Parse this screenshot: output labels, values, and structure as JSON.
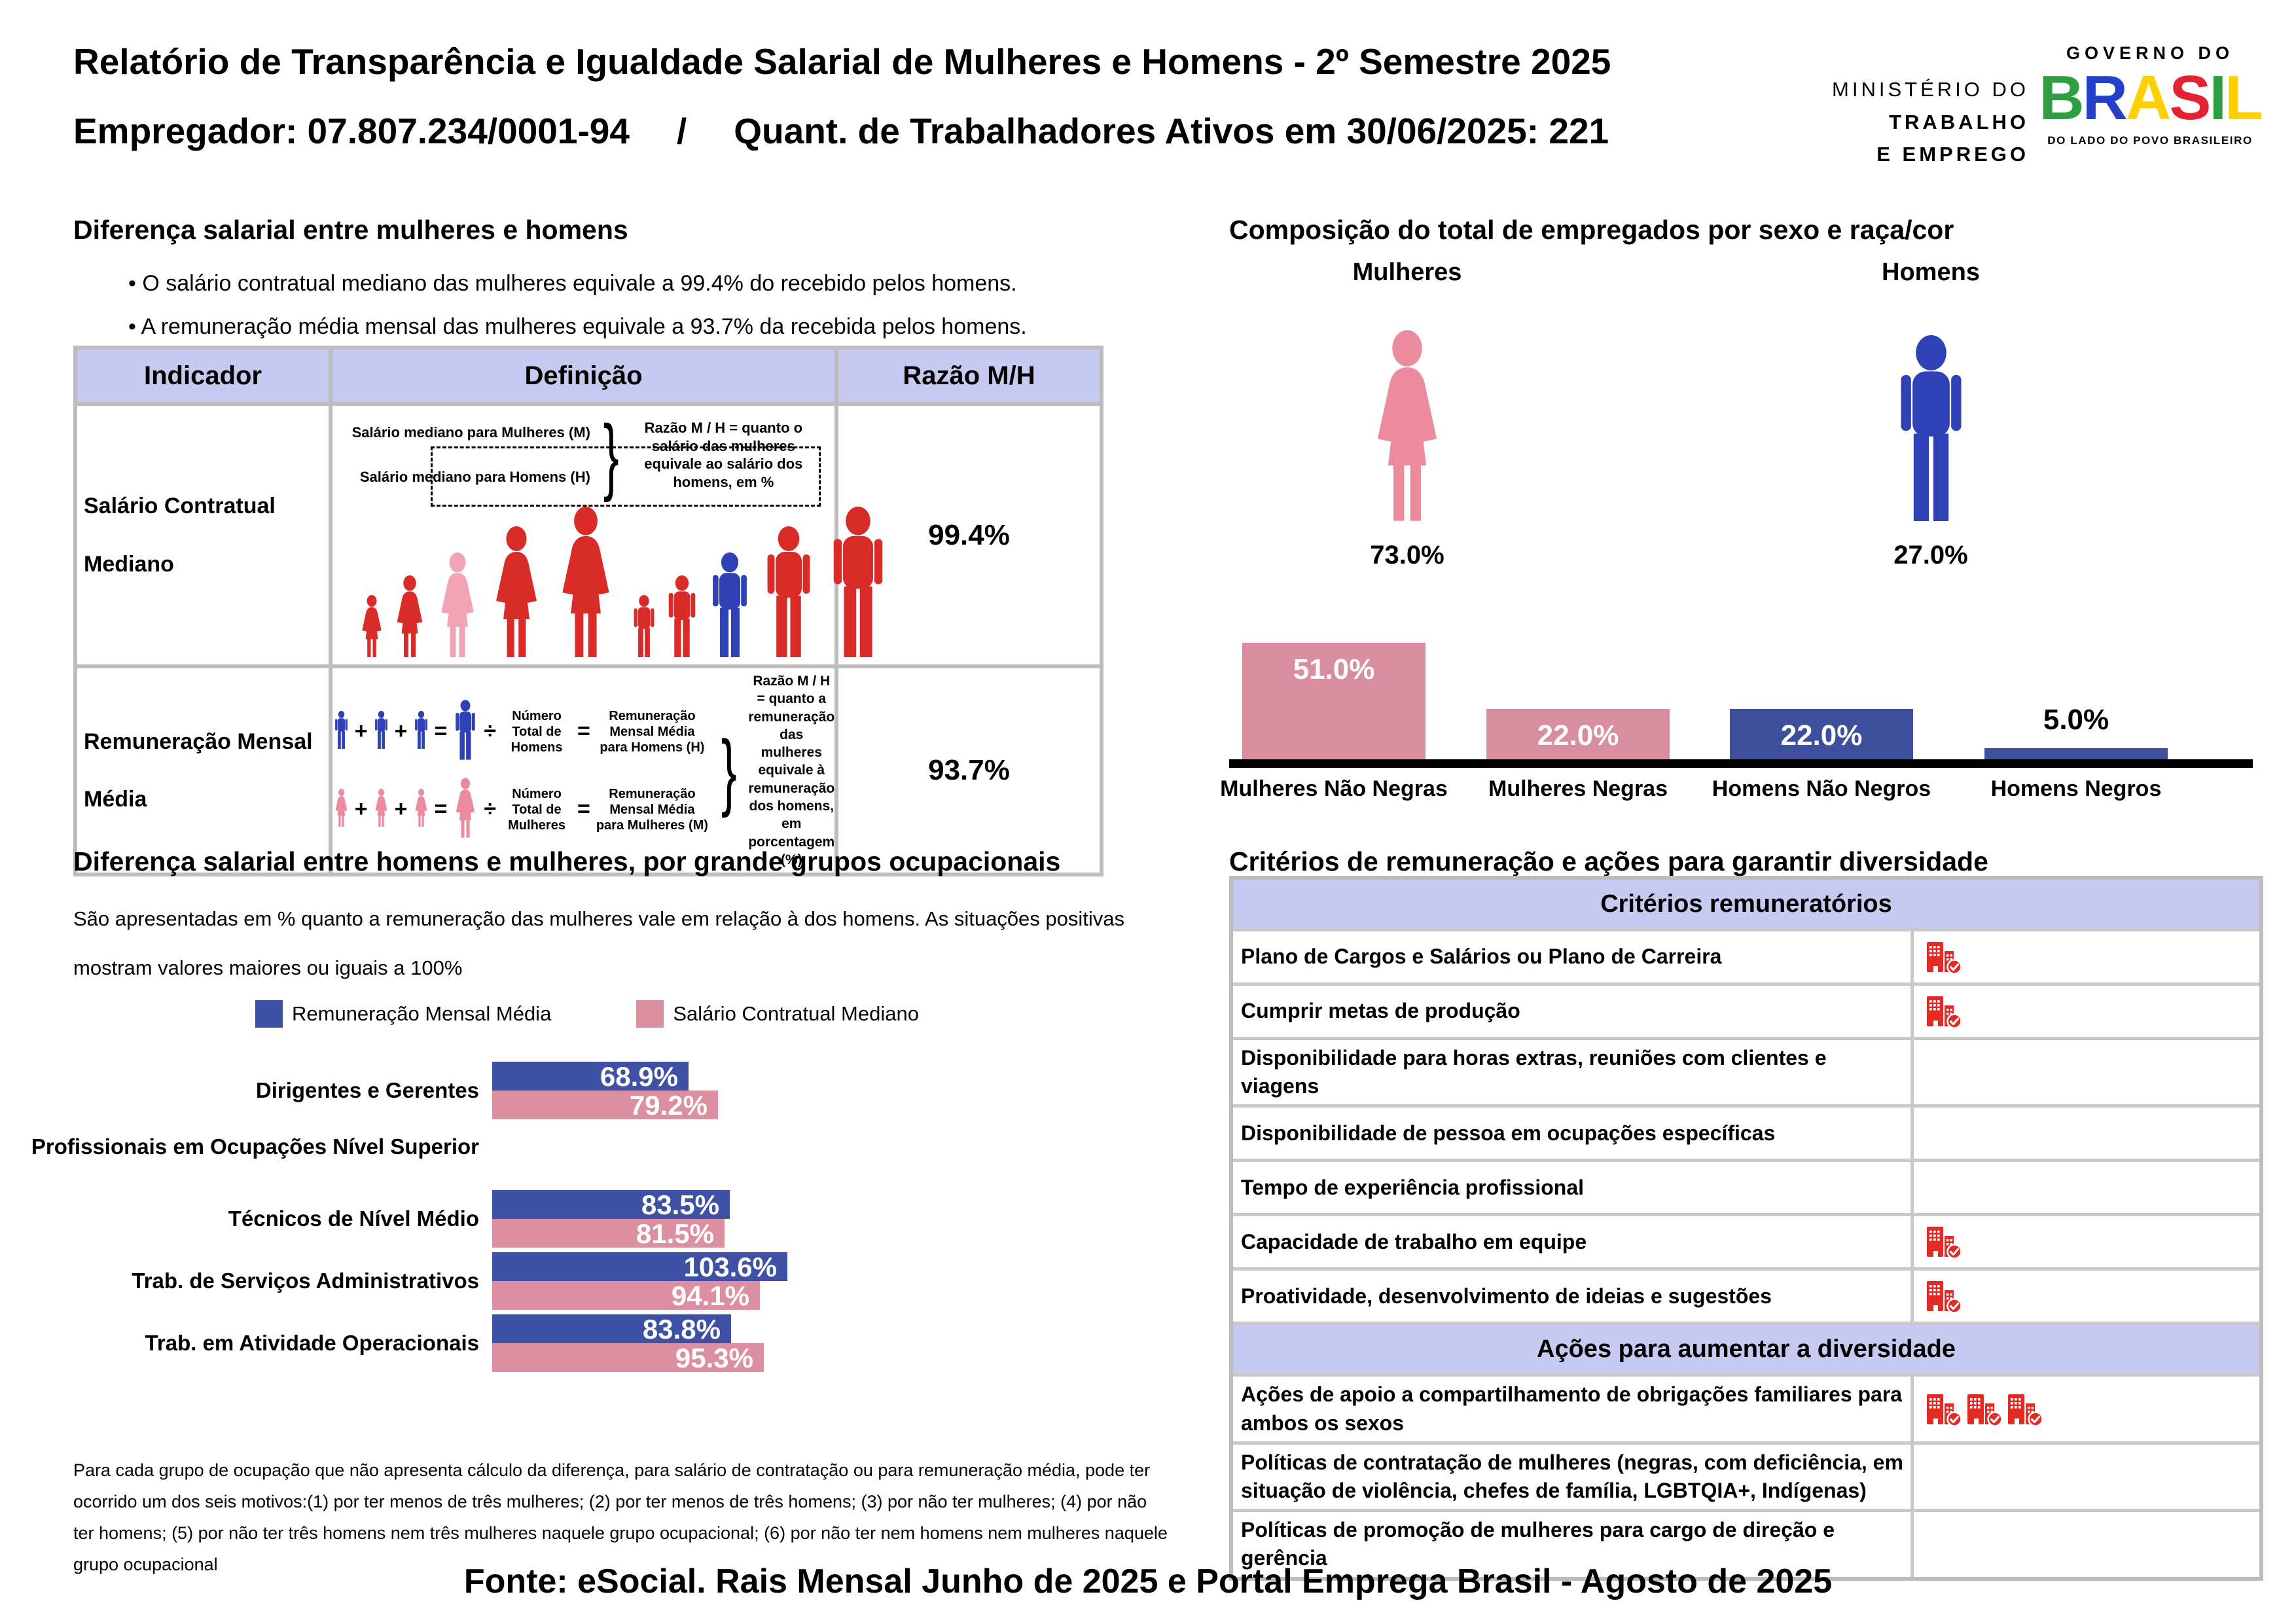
{
  "header": {
    "title": "Relatório de Transparência e Igualdade Salarial de Mulheres e Homens - 2º Semestre 2025",
    "employer": "Empregador: 07.807.234/0001-94",
    "separator": "/",
    "active_workers": "Quant. de Trabalhadores Ativos em 30/06/2025: 221",
    "ministry_lines": [
      "MINISTÉRIO DO",
      "TRABALHO",
      "E EMPREGO"
    ],
    "gov_logo": {
      "kicker": "GOVERNO DO",
      "brand_letters": [
        "B",
        "R",
        "A",
        "S",
        "I",
        "L"
      ],
      "brand_letter_colors": [
        "#2f9e41",
        "#2440c9",
        "#ffd000",
        "#e52330",
        "#2f9e41",
        "#ffd000"
      ],
      "tagline": "DO LADO DO POVO BRASILEIRO"
    }
  },
  "colors": {
    "female_pink": "#ec8b9d",
    "male_blue": "#2e41b5",
    "bar_pink": "#d98da0",
    "bar_navy": "#3e4f9e",
    "chart_blue": "#3f51a5",
    "chart_pink": "#dd8fa2",
    "header_lavender": "#c6c9f0",
    "icon_red": "#e32a25",
    "figure_red": "#d92b28",
    "figure_pink_highlight": "#f0a4b4"
  },
  "salary_gap": {
    "title": "Diferença salarial entre mulheres e homens",
    "bullets": [
      "O salário contratual mediano das mulheres equivale a 99.4% do recebido pelos homens.",
      "A remuneração média mensal das mulheres equivale a 93.7% da recebida pelos homens."
    ],
    "table": {
      "headers": [
        "Indicador",
        "Definição",
        "Razão M/H"
      ],
      "rows": [
        {
          "indicator": "Salário Contratual Mediano",
          "ratio": "99.4%",
          "definition": {
            "label_women": "Salário mediano para Mulheres (M)",
            "label_men": "Salário mediano para Homens (H)",
            "explanation": "Razão M / H = quanto o salário das mulheres equivale ao salário dos homens, em %"
          }
        },
        {
          "indicator": "Remuneração Mensal Média",
          "ratio": "93.7%",
          "definition": {
            "signs": {
              "plus": "+",
              "equals": "=",
              "divide": "÷"
            },
            "men_count_label": "Número Total de Homens",
            "men_result_label": "Remuneração Mensal Média para Homens (H)",
            "women_count_label": "Número Total de Mulheres",
            "women_result_label": "Remuneração Mensal Média para Mulheres (M)",
            "explanation": "Razão M / H = quanto a remuneração das mulheres equivale à remuneração dos homens, em porcentagem (%)"
          }
        }
      ]
    }
  },
  "occupational": {
    "footnote_lines": [
      "Para cada grupo de ocupação que não apresenta cálculo da diferença, para salário de contratação ou para remuneração média, pode ter",
      "ocorrido um dos seis motivos:(1) por ter menos de três mulheres; (2) por ter menos de três homens; (3) por não ter mulheres; (4) por não",
      "ter homens; (5) por não ter três homens nem três mulheres naquele grupo ocupacional; (6) por não ter nem homens nem mulheres naquele",
      "grupo ocupacional"
    ]
  },
  "criteria": {
    "title": "Critérios de remuneração e ações para garantir diversidade",
    "icon_color": "#e32a25",
    "groups": [
      {
        "header": "Critérios remuneratórios",
        "rows": [
          {
            "label": "Plano de Cargos e Salários ou Plano de Carreira",
            "checks": 1
          },
          {
            "label": "Cumprir metas de produção",
            "checks": 1
          },
          {
            "label": "Disponibilidade para horas extras, reuniões com clientes e viagens",
            "checks": 0
          },
          {
            "label": "Disponibilidade de pessoa em ocupações específicas",
            "checks": 0
          },
          {
            "label": "Tempo de experiência profissional",
            "checks": 0
          },
          {
            "label": "Capacidade de trabalho em equipe",
            "checks": 1
          },
          {
            "label": "Proatividade, desenvolvimento de ideias e sugestões",
            "checks": 1
          }
        ]
      },
      {
        "header": "Ações para aumentar a diversidade",
        "rows": [
          {
            "label": "Ações de apoio a compartilhamento de obrigações familiares para ambos os sexos",
            "checks": 3
          },
          {
            "label": "Políticas de contratação de mulheres (negras, com deficiência, em situação de violência, chefes de família, LGBTQIA+, Indígenas)",
            "checks": 0
          },
          {
            "label": "Políticas de promoção de mulheres para cargo de direção e gerência",
            "checks": 0
          }
        ]
      }
    ]
  },
  "footer": {
    "source": "Fonte: eSocial. Rais Mensal Junho de 2025 e Portal Emprega Brasil - Agosto de 2025"
  },
  "chart_data": [
    {
      "id": "composition",
      "type": "bar",
      "title": "Composição do total de empregados por sexo e raça/cor",
      "pictograms": [
        {
          "label": "Mulheres",
          "value": 73.0,
          "value_label": "73.0%",
          "color": "#ec8b9d",
          "sex": "female"
        },
        {
          "label": "Homens",
          "value": 27.0,
          "value_label": "27.0%",
          "color": "#2e41b5",
          "sex": "male"
        }
      ],
      "categories": [
        "Mulheres Não Negras",
        "Mulheres Negras",
        "Homens Não Negros",
        "Homens Negros"
      ],
      "values": [
        51.0,
        22.0,
        22.0,
        5.0
      ],
      "value_labels": [
        "51.0%",
        "22.0%",
        "22.0%",
        "5.0%"
      ],
      "bar_colors": [
        "#d98da0",
        "#d98da0",
        "#3e4f9e",
        "#3e4f9e"
      ],
      "ylim": [
        0,
        55
      ],
      "grid": false,
      "legend_position": "none"
    },
    {
      "id": "occupational",
      "type": "bar",
      "orientation": "horizontal",
      "title": "Diferença salarial entre homens e mulheres, por grande grupos ocupacionais",
      "subtitle_lines": [
        "São apresentadas em % quanto a remuneração das mulheres vale em relação à dos homens. As situações positivas",
        "mostram valores maiores ou iguais a 100%"
      ],
      "categories": [
        "Dirigentes e Gerentes",
        "Profissionais em Ocupações Nível Superior",
        "Técnicos de Nível Médio",
        "Trab. de Serviços Administrativos",
        "Trab. em Atividade Operacionais"
      ],
      "series": [
        {
          "name": "Remuneração Mensal Média",
          "color": "#3f51a5",
          "values": [
            68.9,
            null,
            83.5,
            103.6,
            83.8
          ],
          "value_labels": [
            "68.9%",
            null,
            "83.5%",
            "103.6%",
            "83.8%"
          ]
        },
        {
          "name": "Salário Contratual Mediano",
          "color": "#dd8fa2",
          "values": [
            79.2,
            null,
            81.5,
            94.1,
            95.3
          ],
          "value_labels": [
            "79.2%",
            null,
            "81.5%",
            "94.1%",
            "95.3%"
          ]
        }
      ],
      "xlim": [
        0,
        110
      ],
      "grid": false,
      "legend_position": "top"
    }
  ]
}
